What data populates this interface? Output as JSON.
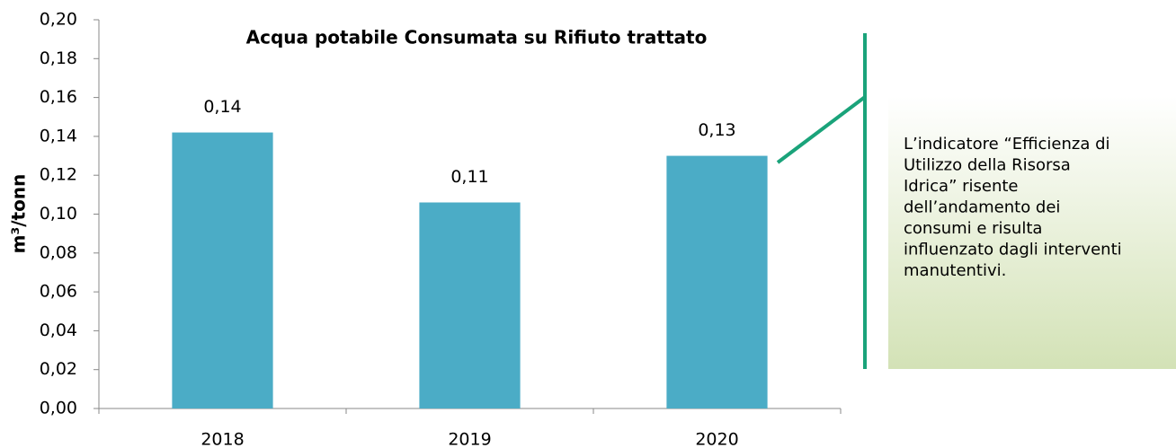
{
  "chart_data": {
    "type": "bar",
    "title": "Acqua potabile Consumata su Rifiuto trattato",
    "y_label": "m³/tonn",
    "categories": [
      "2018",
      "2019",
      "2020"
    ],
    "values": [
      0.142,
      0.106,
      0.13
    ],
    "value_labels": [
      "0,14",
      "0,11",
      "0,13"
    ],
    "color": "#4bacc6",
    "ylim": [
      0,
      0.2
    ],
    "yticks": [
      {
        "value": 0,
        "label": "0,00"
      },
      {
        "value": 0.02,
        "label": "0,02"
      },
      {
        "value": 0.04,
        "label": "0,04"
      },
      {
        "value": 0.06,
        "label": "0,06"
      },
      {
        "value": 0.08,
        "label": "0,08"
      },
      {
        "value": 0.1,
        "label": "0,10"
      },
      {
        "value": 0.12,
        "label": "0,12"
      },
      {
        "value": 0.14,
        "label": "0,14"
      },
      {
        "value": 0.16,
        "label": "0,16"
      },
      {
        "value": 0.18,
        "label": "0,18"
      },
      {
        "value": 0.2,
        "label": "0,20"
      }
    ],
    "grid": false,
    "annotation": [
      "L’indicatore “Efficienza di",
      "Utilizzo della Risorsa",
      "Idrica” risente",
      "dell’andamento dei",
      "consumi e risulta",
      "influenzato dagli interventi",
      "manutentivi."
    ]
  }
}
